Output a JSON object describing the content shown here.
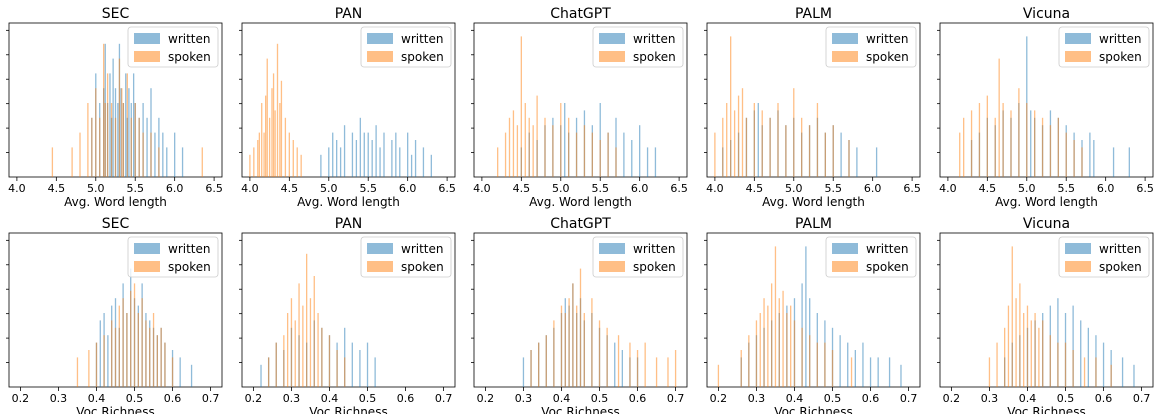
{
  "figure": {
    "series_names": [
      "written",
      "spoken"
    ],
    "colors": {
      "written": "#1f77b4",
      "spoken": "#ff7f0e"
    }
  },
  "chart_data": [
    {
      "type": "bar",
      "title": "SEC",
      "xlabel": "Avg. Word length",
      "xlim": [
        3.9,
        6.6
      ],
      "xticks": [
        "4.0",
        "4.5",
        "5.0",
        "5.5",
        "6.0",
        "6.5"
      ],
      "legend": "top-right",
      "series": [
        {
          "name": "written",
          "x": [
            4.95,
            5.0,
            5.05,
            5.1,
            5.12,
            5.15,
            5.18,
            5.2,
            5.22,
            5.25,
            5.28,
            5.3,
            5.32,
            5.35,
            5.38,
            5.4,
            5.42,
            5.45,
            5.48,
            5.5,
            5.55,
            5.6,
            5.65,
            5.7,
            5.75,
            5.8,
            5.85,
            5.9,
            6.0,
            6.1
          ],
          "h": [
            0.4,
            0.7,
            0.5,
            0.6,
            0.9,
            0.5,
            0.7,
            0.4,
            0.8,
            0.6,
            0.5,
            0.9,
            0.6,
            0.5,
            0.7,
            0.4,
            0.6,
            0.5,
            0.7,
            0.5,
            0.4,
            0.5,
            0.4,
            0.6,
            0.3,
            0.4,
            0.3,
            0.2,
            0.3,
            0.2
          ]
        },
        {
          "name": "spoken",
          "x": [
            4.45,
            4.7,
            4.8,
            4.9,
            4.95,
            5.0,
            5.05,
            5.1,
            5.12,
            5.15,
            5.2,
            5.25,
            5.3,
            5.33,
            5.35,
            5.4,
            5.45,
            5.5,
            5.55,
            5.6,
            5.7,
            5.8,
            6.35
          ],
          "h": [
            0.2,
            0.2,
            0.3,
            0.5,
            0.4,
            0.6,
            0.4,
            0.9,
            0.5,
            0.7,
            0.5,
            0.4,
            0.8,
            0.6,
            0.5,
            0.7,
            0.4,
            0.5,
            0.4,
            0.3,
            0.3,
            0.2,
            0.2
          ]
        }
      ]
    },
    {
      "type": "bar",
      "title": "PAN",
      "xlabel": "Avg. Word length",
      "xlim": [
        3.9,
        6.6
      ],
      "xticks": [
        "4.0",
        "4.5",
        "5.0",
        "5.5",
        "6.0",
        "6.5"
      ],
      "legend": "top-right",
      "series": [
        {
          "name": "written",
          "x": [
            4.9,
            5.0,
            5.05,
            5.1,
            5.15,
            5.2,
            5.3,
            5.35,
            5.4,
            5.45,
            5.5,
            5.55,
            5.6,
            5.65,
            5.7,
            5.8,
            5.85,
            5.9,
            6.0,
            6.05,
            6.1,
            6.2,
            6.3
          ],
          "h": [
            0.15,
            0.2,
            0.3,
            0.25,
            0.2,
            0.35,
            0.3,
            0.25,
            0.4,
            0.3,
            0.3,
            0.25,
            0.35,
            0.2,
            0.3,
            0.25,
            0.3,
            0.2,
            0.3,
            0.15,
            0.25,
            0.2,
            0.15
          ]
        },
        {
          "name": "spoken",
          "x": [
            4.0,
            4.05,
            4.1,
            4.12,
            4.15,
            4.18,
            4.2,
            4.22,
            4.25,
            4.28,
            4.3,
            4.32,
            4.35,
            4.38,
            4.4,
            4.45,
            4.5,
            4.55,
            4.6,
            4.65
          ],
          "h": [
            0.15,
            0.2,
            0.25,
            0.3,
            0.5,
            0.3,
            0.55,
            0.8,
            0.4,
            0.6,
            0.7,
            0.45,
            0.9,
            0.5,
            0.65,
            0.4,
            0.3,
            0.25,
            0.2,
            0.15
          ]
        }
      ]
    },
    {
      "type": "bar",
      "title": "ChatGPT",
      "xlabel": "Avg. Word length",
      "xlim": [
        3.9,
        6.6
      ],
      "xticks": [
        "4.0",
        "4.5",
        "5.0",
        "5.5",
        "6.0",
        "6.5"
      ],
      "legend": "top-right",
      "series": [
        {
          "name": "written",
          "x": [
            4.5,
            4.6,
            4.7,
            4.8,
            4.9,
            5.0,
            5.05,
            5.1,
            5.2,
            5.3,
            5.4,
            5.5,
            5.6,
            5.7,
            5.8,
            5.9,
            6.0,
            6.1,
            6.2
          ],
          "h": [
            0.2,
            0.3,
            0.25,
            0.35,
            0.4,
            0.35,
            0.5,
            0.3,
            0.4,
            0.45,
            0.35,
            0.5,
            0.3,
            0.4,
            0.3,
            0.25,
            0.35,
            0.2,
            0.2
          ]
        },
        {
          "name": "spoken",
          "x": [
            4.2,
            4.3,
            4.35,
            4.4,
            4.45,
            4.5,
            4.55,
            4.6,
            4.65,
            4.7,
            4.8,
            4.9,
            5.0,
            5.1,
            5.2,
            5.3,
            5.4,
            5.5,
            5.6,
            5.7
          ],
          "h": [
            0.2,
            0.3,
            0.4,
            0.45,
            0.35,
            0.95,
            0.5,
            0.4,
            0.35,
            0.55,
            0.4,
            0.35,
            0.5,
            0.4,
            0.3,
            0.35,
            0.3,
            0.25,
            0.3,
            0.2
          ]
        }
      ]
    },
    {
      "type": "bar",
      "title": "PALM",
      "xlabel": "Avg. Word length",
      "xlim": [
        3.9,
        6.6
      ],
      "xticks": [
        "4.0",
        "4.5",
        "5.0",
        "5.5",
        "6.0",
        "6.5"
      ],
      "legend": "top-right",
      "series": [
        {
          "name": "written",
          "x": [
            4.1,
            4.2,
            4.3,
            4.4,
            4.5,
            4.55,
            4.6,
            4.7,
            4.8,
            4.9,
            5.0,
            5.1,
            5.2,
            5.3,
            5.4,
            5.5,
            5.6,
            5.7,
            5.8,
            6.05
          ],
          "h": [
            0.2,
            0.25,
            0.3,
            0.4,
            0.45,
            0.5,
            0.35,
            0.4,
            0.45,
            0.35,
            0.4,
            0.3,
            0.35,
            0.4,
            0.3,
            0.35,
            0.3,
            0.25,
            0.2,
            0.2
          ]
        },
        {
          "name": "spoken",
          "x": [
            4.0,
            4.1,
            4.15,
            4.2,
            4.25,
            4.3,
            4.35,
            4.4,
            4.5,
            4.6,
            4.7,
            4.8,
            4.9,
            5.0,
            5.1,
            5.2,
            5.3,
            5.4,
            5.5,
            5.7
          ],
          "h": [
            0.3,
            0.4,
            0.5,
            0.95,
            0.45,
            0.55,
            0.6,
            0.4,
            0.5,
            0.45,
            0.4,
            0.5,
            0.35,
            0.6,
            0.4,
            0.35,
            0.5,
            0.3,
            0.35,
            0.25
          ]
        }
      ]
    },
    {
      "type": "bar",
      "title": "Vicuna",
      "xlabel": "Avg. Word length",
      "xlim": [
        3.9,
        6.6
      ],
      "xticks": [
        "4.0",
        "4.5",
        "5.0",
        "5.5",
        "6.0",
        "6.5"
      ],
      "legend": "top-right",
      "series": [
        {
          "name": "written",
          "x": [
            4.3,
            4.4,
            4.5,
            4.6,
            4.7,
            4.8,
            4.9,
            5.0,
            5.05,
            5.1,
            5.2,
            5.3,
            5.4,
            5.5,
            5.6,
            5.7,
            5.8,
            5.85,
            6.1,
            6.3
          ],
          "h": [
            0.25,
            0.3,
            0.4,
            0.35,
            0.45,
            0.4,
            0.5,
            0.95,
            0.45,
            0.4,
            0.35,
            0.45,
            0.4,
            0.35,
            0.3,
            0.25,
            0.3,
            0.25,
            0.2,
            0.2
          ]
        },
        {
          "name": "spoken",
          "x": [
            4.15,
            4.2,
            4.3,
            4.4,
            4.5,
            4.6,
            4.65,
            4.7,
            4.8,
            4.9,
            5.0,
            5.1,
            5.2,
            5.3,
            5.4,
            5.5,
            5.6,
            5.7
          ],
          "h": [
            0.3,
            0.4,
            0.45,
            0.5,
            0.55,
            0.4,
            0.8,
            0.5,
            0.45,
            0.6,
            0.5,
            0.45,
            0.4,
            0.35,
            0.4,
            0.3,
            0.25,
            0.2
          ]
        }
      ]
    },
    {
      "type": "bar",
      "title": "SEC",
      "xlabel": "Voc Richness",
      "xlim": [
        0.17,
        0.73
      ],
      "xticks": [
        "0.2",
        "0.3",
        "0.4",
        "0.5",
        "0.6",
        "0.7"
      ],
      "legend": "top-right",
      "series": [
        {
          "name": "written",
          "x": [
            0.4,
            0.41,
            0.42,
            0.43,
            0.44,
            0.45,
            0.46,
            0.47,
            0.48,
            0.49,
            0.5,
            0.51,
            0.52,
            0.53,
            0.54,
            0.55,
            0.56,
            0.57,
            0.58,
            0.6,
            0.62,
            0.65
          ],
          "h": [
            0.3,
            0.45,
            0.5,
            0.35,
            0.55,
            0.6,
            0.4,
            0.7,
            0.5,
            0.8,
            0.6,
            0.55,
            0.7,
            0.5,
            0.45,
            0.4,
            0.35,
            0.4,
            0.3,
            0.25,
            0.2,
            0.15
          ]
        },
        {
          "name": "spoken",
          "x": [
            0.35,
            0.38,
            0.4,
            0.42,
            0.44,
            0.45,
            0.46,
            0.47,
            0.48,
            0.49,
            0.5,
            0.51,
            0.52,
            0.53,
            0.54,
            0.55,
            0.56,
            0.57,
            0.58,
            0.6
          ],
          "h": [
            0.2,
            0.25,
            0.3,
            0.35,
            0.45,
            0.4,
            0.55,
            0.6,
            0.5,
            0.65,
            0.7,
            0.5,
            0.6,
            0.45,
            0.4,
            0.5,
            0.35,
            0.4,
            0.3,
            0.2
          ]
        }
      ]
    },
    {
      "type": "bar",
      "title": "PAN",
      "xlabel": "Voc Richness",
      "xlim": [
        0.17,
        0.73
      ],
      "xticks": [
        "0.2",
        "0.3",
        "0.4",
        "0.5",
        "0.6",
        "0.7"
      ],
      "legend": "top-right",
      "series": [
        {
          "name": "written",
          "x": [
            0.22,
            0.24,
            0.26,
            0.28,
            0.3,
            0.32,
            0.34,
            0.36,
            0.38,
            0.4,
            0.42,
            0.44,
            0.46,
            0.48,
            0.5,
            0.52
          ],
          "h": [
            0.15,
            0.2,
            0.3,
            0.25,
            0.4,
            0.35,
            0.3,
            0.45,
            0.4,
            0.35,
            0.3,
            0.4,
            0.3,
            0.25,
            0.3,
            0.2
          ]
        },
        {
          "name": "spoken",
          "x": [
            0.24,
            0.26,
            0.28,
            0.29,
            0.3,
            0.31,
            0.32,
            0.33,
            0.34,
            0.35,
            0.36,
            0.37,
            0.38,
            0.4,
            0.42,
            0.44
          ],
          "h": [
            0.2,
            0.3,
            0.35,
            0.5,
            0.6,
            0.45,
            0.7,
            0.55,
            0.9,
            0.6,
            0.75,
            0.5,
            0.4,
            0.35,
            0.25,
            0.2
          ]
        }
      ]
    },
    {
      "type": "bar",
      "title": "ChatGPT",
      "xlabel": "Voc Richness",
      "xlim": [
        0.17,
        0.73
      ],
      "xticks": [
        "0.2",
        "0.3",
        "0.4",
        "0.5",
        "0.6",
        "0.7"
      ],
      "legend": "top-right",
      "series": [
        {
          "name": "written",
          "x": [
            0.3,
            0.32,
            0.34,
            0.36,
            0.38,
            0.4,
            0.41,
            0.42,
            0.43,
            0.44,
            0.45,
            0.46,
            0.48,
            0.5,
            0.52,
            0.54,
            0.56,
            0.58,
            0.6
          ],
          "h": [
            0.2,
            0.25,
            0.3,
            0.35,
            0.4,
            0.5,
            0.6,
            0.55,
            0.7,
            0.5,
            0.6,
            0.45,
            0.5,
            0.4,
            0.35,
            0.3,
            0.25,
            0.2,
            0.2
          ]
        },
        {
          "name": "spoken",
          "x": [
            0.32,
            0.34,
            0.36,
            0.38,
            0.4,
            0.41,
            0.42,
            0.43,
            0.44,
            0.45,
            0.46,
            0.48,
            0.5,
            0.52,
            0.55,
            0.58,
            0.6,
            0.62,
            0.65,
            0.68,
            0.7
          ],
          "h": [
            0.25,
            0.3,
            0.35,
            0.45,
            0.55,
            0.5,
            0.6,
            0.7,
            0.55,
            0.8,
            0.5,
            0.6,
            0.45,
            0.4,
            0.35,
            0.3,
            0.25,
            0.3,
            0.2,
            0.2,
            0.25
          ]
        }
      ]
    },
    {
      "type": "bar",
      "title": "PALM",
      "xlabel": "Voc Richness",
      "xlim": [
        0.17,
        0.73
      ],
      "xticks": [
        "0.2",
        "0.3",
        "0.4",
        "0.5",
        "0.6",
        "0.7"
      ],
      "legend": "top-right",
      "series": [
        {
          "name": "written",
          "x": [
            0.26,
            0.28,
            0.3,
            0.32,
            0.34,
            0.36,
            0.38,
            0.4,
            0.42,
            0.43,
            0.44,
            0.46,
            0.48,
            0.5,
            0.52,
            0.54,
            0.56,
            0.58,
            0.6,
            0.62,
            0.65,
            0.68
          ],
          "h": [
            0.2,
            0.3,
            0.35,
            0.4,
            0.45,
            0.5,
            0.55,
            0.6,
            0.7,
            0.95,
            0.6,
            0.5,
            0.45,
            0.4,
            0.35,
            0.3,
            0.25,
            0.3,
            0.2,
            0.2,
            0.2,
            0.15
          ]
        },
        {
          "name": "spoken",
          "x": [
            0.2,
            0.26,
            0.28,
            0.3,
            0.31,
            0.32,
            0.33,
            0.34,
            0.35,
            0.36,
            0.37,
            0.38,
            0.39,
            0.4,
            0.42,
            0.44,
            0.46,
            0.48,
            0.5,
            0.55
          ],
          "h": [
            0.15,
            0.25,
            0.35,
            0.45,
            0.5,
            0.6,
            0.55,
            0.7,
            0.95,
            0.6,
            0.65,
            0.5,
            0.55,
            0.45,
            0.4,
            0.35,
            0.3,
            0.3,
            0.25,
            0.2
          ]
        }
      ]
    },
    {
      "type": "bar",
      "title": "Vicuna",
      "xlabel": "Voc Richness",
      "xlim": [
        0.17,
        0.73
      ],
      "xticks": [
        "0.2",
        "0.3",
        "0.4",
        "0.5",
        "0.6",
        "0.7"
      ],
      "legend": "top-right",
      "series": [
        {
          "name": "written",
          "x": [
            0.34,
            0.36,
            0.38,
            0.4,
            0.42,
            0.44,
            0.46,
            0.48,
            0.5,
            0.52,
            0.54,
            0.56,
            0.58,
            0.6,
            0.62,
            0.65,
            0.68
          ],
          "h": [
            0.2,
            0.3,
            0.35,
            0.4,
            0.45,
            0.5,
            0.55,
            0.6,
            0.5,
            0.55,
            0.45,
            0.4,
            0.35,
            0.3,
            0.25,
            0.2,
            0.15
          ]
        },
        {
          "name": "spoken",
          "x": [
            0.3,
            0.32,
            0.34,
            0.35,
            0.36,
            0.37,
            0.38,
            0.39,
            0.4,
            0.41,
            0.42,
            0.43,
            0.44,
            0.46,
            0.48,
            0.5,
            0.52,
            0.55,
            0.58,
            0.62
          ],
          "h": [
            0.2,
            0.3,
            0.4,
            0.55,
            0.95,
            0.6,
            0.7,
            0.5,
            0.55,
            0.45,
            0.5,
            0.4,
            0.45,
            0.35,
            0.3,
            0.3,
            0.25,
            0.2,
            0.2,
            0.15
          ]
        }
      ]
    }
  ]
}
